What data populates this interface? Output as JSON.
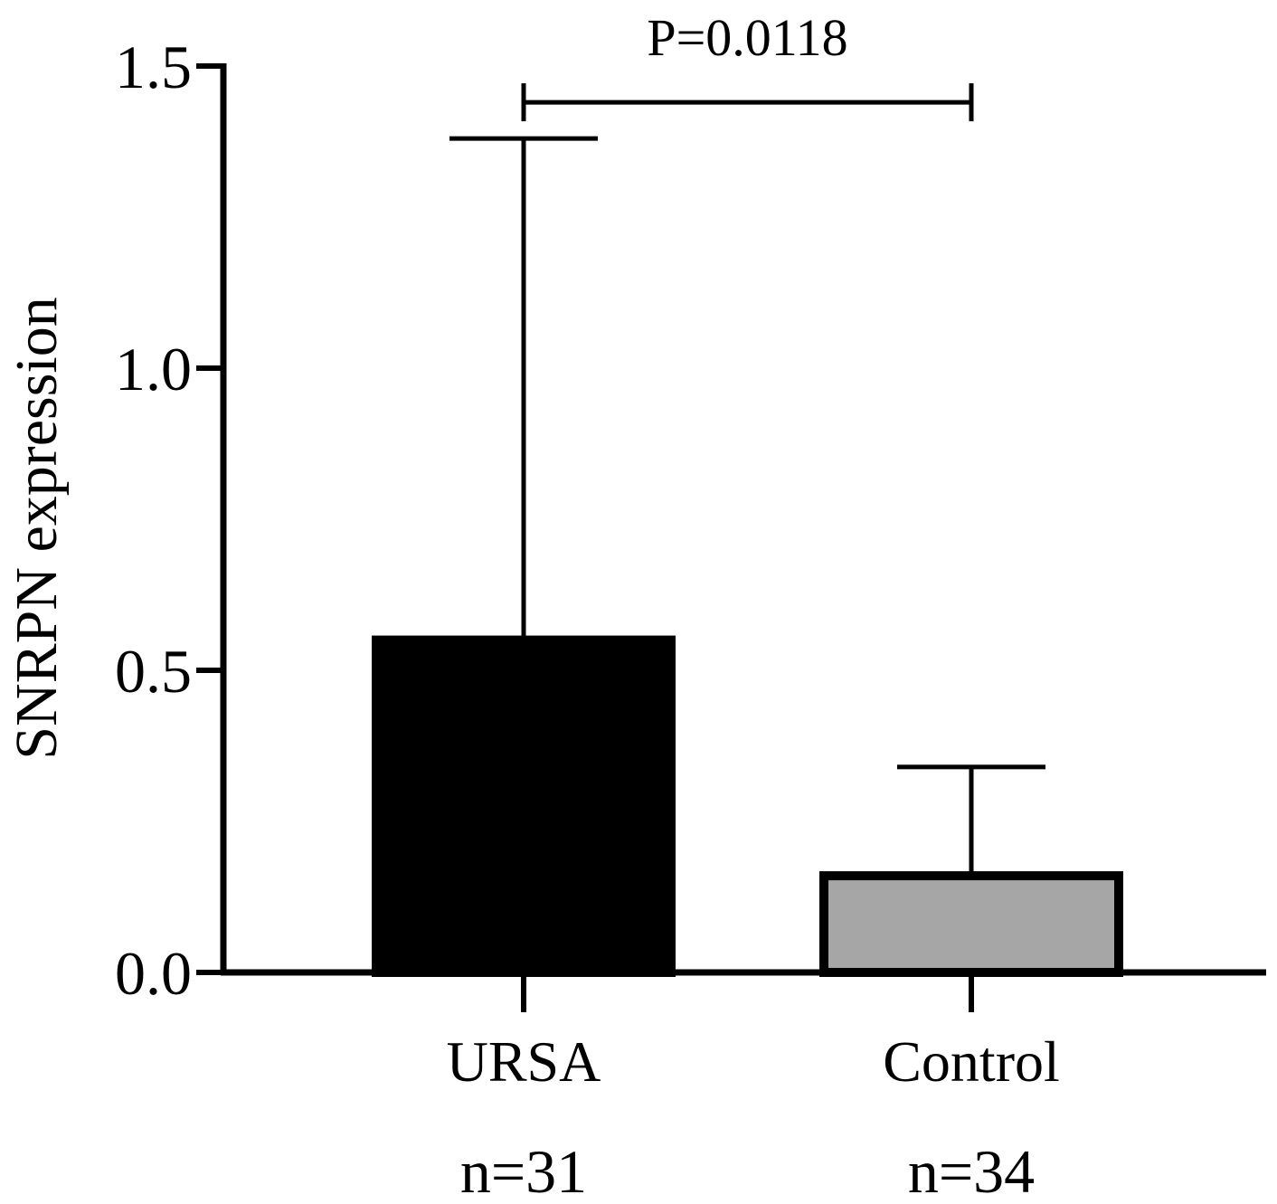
{
  "chart_data": {
    "type": "bar",
    "title": "",
    "xlabel": "",
    "ylabel": "SNRPN expression",
    "ylim": [
      0,
      1.5
    ],
    "yticks": [
      0.0,
      0.5,
      1.0,
      1.5
    ],
    "ytick_labels": [
      "0.0",
      "0.5",
      "1.0",
      "1.5"
    ],
    "categories": [
      "URSA",
      "Control"
    ],
    "sample_sizes": [
      "n=31",
      "n=34"
    ],
    "values": [
      0.55,
      0.16
    ],
    "error_upper": [
      1.38,
      0.34
    ],
    "bar_colors": [
      "#000000",
      "#a6a6a6"
    ],
    "bar_edge_color": "#000000",
    "significance": {
      "label": "P=0.0118",
      "from": "URSA",
      "to": "Control",
      "y": 1.44
    },
    "grid": false,
    "legend": "none"
  }
}
